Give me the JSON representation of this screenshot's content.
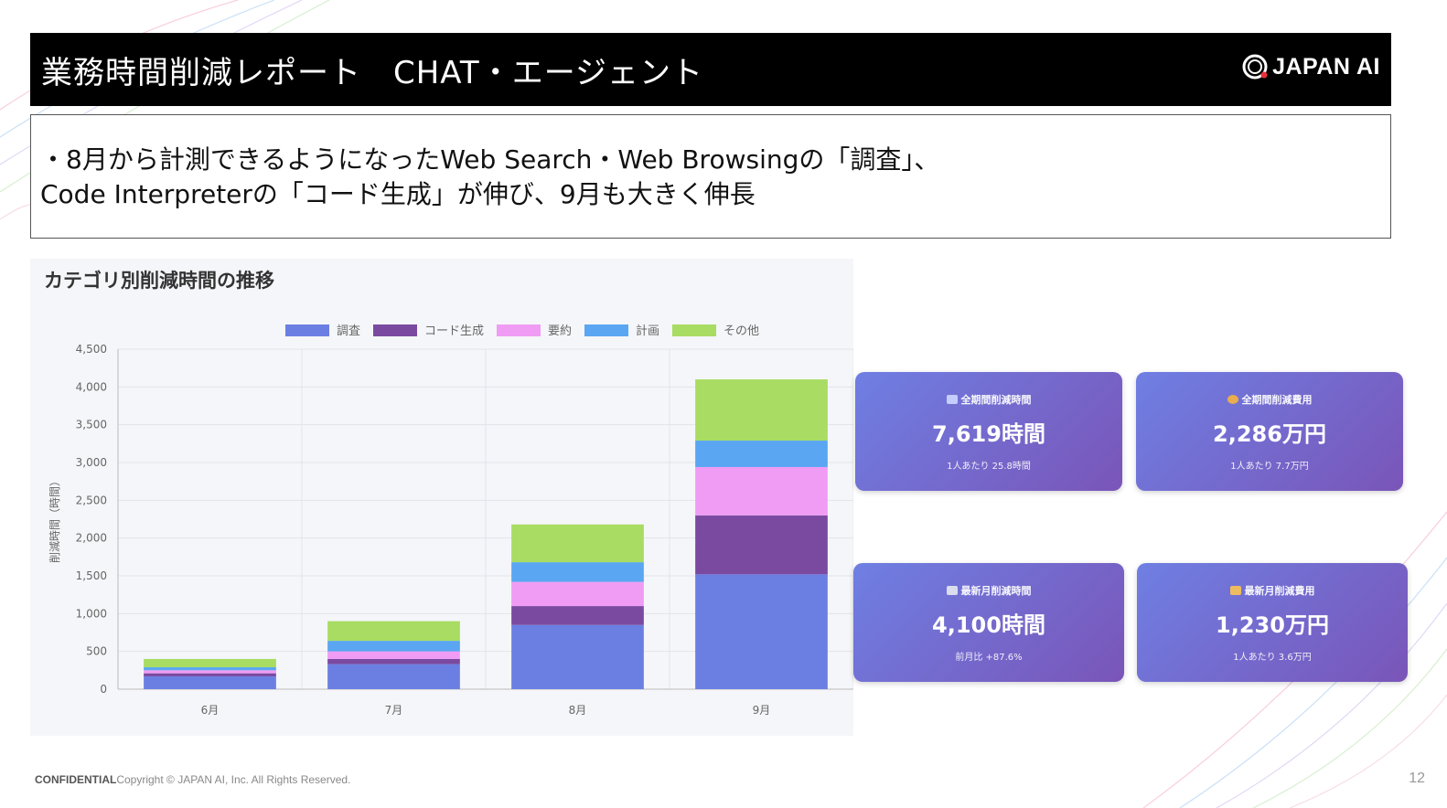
{
  "header": {
    "title": "業務時間削減レポート　CHAT・エージェント",
    "logo_text": "JAPAN AI"
  },
  "summary": {
    "line1": "・8月から計測できるようになったWeb Search・Web Browsingの「調査」、",
    "line2": "Code Interpreterの「コード生成」が伸び、9月も大きく伸長"
  },
  "chart_data": {
    "type": "bar",
    "stacked": true,
    "title": "カテゴリ別削減時間の推移",
    "ylabel": "削減時間（時間）",
    "xlabel": "",
    "categories": [
      "6月",
      "7月",
      "8月",
      "9月"
    ],
    "ylim": [
      0,
      4500
    ],
    "yticks": [
      "0",
      "500",
      "1,000",
      "1,500",
      "2,000",
      "2,500",
      "3,000",
      "3,500",
      "4,000",
      "4,500"
    ],
    "grid": true,
    "legend_position": "top",
    "series": [
      {
        "name": "調査",
        "color": "#6b7fe3",
        "values": [
          170,
          330,
          850,
          1520
        ]
      },
      {
        "name": "コード生成",
        "color": "#7a4aa0",
        "values": [
          40,
          70,
          250,
          780
        ]
      },
      {
        "name": "要約",
        "color": "#f09cf4",
        "values": [
          40,
          100,
          320,
          640
        ]
      },
      {
        "name": "計画",
        "color": "#5aa6f2",
        "values": [
          40,
          140,
          260,
          350
        ]
      },
      {
        "name": "その他",
        "color": "#a8dc62",
        "values": [
          110,
          260,
          500,
          810
        ]
      }
    ]
  },
  "cards": [
    {
      "icon": "bar-chart-icon",
      "icon_color": "#c9d3ff",
      "label": "全期間削減時間",
      "value": "7,619時間",
      "sub": "1人あたり 25.8時間"
    },
    {
      "icon": "money-bag-icon",
      "icon_color": "#f0b048",
      "label": "全期間削減費用",
      "value": "2,286万円",
      "sub": "1人あたり 7.7万円"
    },
    {
      "icon": "calendar-icon",
      "icon_color": "#dfe3f0",
      "label": "最新月削減時間",
      "value": "4,100時間",
      "sub": "前月比 +87.6%"
    },
    {
      "icon": "money-icon",
      "icon_color": "#f5c15a",
      "label": "最新月削減費用",
      "value": "1,230万円",
      "sub": "1人あたり 3.6万円"
    }
  ],
  "footer": {
    "confidential": "CONFIDENTIAL",
    "copyright": "Copyright © JAPAN AI, Inc. All Rights Reserved.",
    "page_number": "12"
  }
}
